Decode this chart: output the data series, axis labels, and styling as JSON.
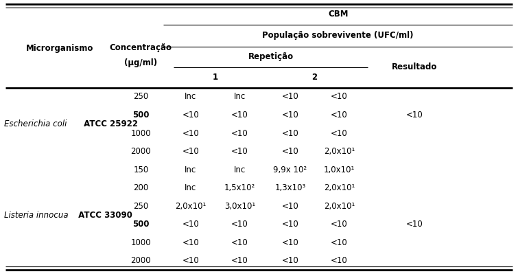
{
  "title": "CBM",
  "header_micro": "Microrganismo",
  "header_conc1": "Concentração",
  "header_conc2": "(μg/ml)",
  "header_pop": "População sobrevivente (UFC/ml)",
  "header_rep": "Repetição",
  "header_1": "1",
  "header_2": "2",
  "header_res": "Resultado",
  "rows": [
    {
      "conc": "250",
      "conc_bold": false,
      "r1a": "Inc",
      "r1b": "Inc",
      "r2a": "<10",
      "r2b": "<10",
      "res": ""
    },
    {
      "conc": "500",
      "conc_bold": true,
      "r1a": "<10",
      "r1b": "<10",
      "r2a": "<10",
      "r2b": "<10",
      "res": "<10"
    },
    {
      "conc": "1000",
      "conc_bold": false,
      "r1a": "<10",
      "r1b": "<10",
      "r2a": "<10",
      "r2b": "<10",
      "res": ""
    },
    {
      "conc": "2000",
      "conc_bold": false,
      "r1a": "<10",
      "r1b": "<10",
      "r2a": "<10",
      "r2b": "2,0x10¹",
      "res": ""
    },
    {
      "conc": "150",
      "conc_bold": false,
      "r1a": "Inc",
      "r1b": "Inc",
      "r2a": "9,9x 10²",
      "r2b": "1,0x10¹",
      "res": ""
    },
    {
      "conc": "200",
      "conc_bold": false,
      "r1a": "Inc",
      "r1b": "1,5x10²",
      "r2a": "1,3x10³",
      "r2b": "2,0x10¹",
      "res": ""
    },
    {
      "conc": "250",
      "conc_bold": false,
      "r1a": "2,0x10¹",
      "r1b": "3,0x10¹",
      "r2a": "<10",
      "r2b": "2,0x10¹",
      "res": ""
    },
    {
      "conc": "500",
      "conc_bold": true,
      "r1a": "<10",
      "r1b": "<10",
      "r2a": "<10",
      "r2b": "<10",
      "res": "<10"
    },
    {
      "conc": "1000",
      "conc_bold": false,
      "r1a": "<10",
      "r1b": "<10",
      "r2a": "<10",
      "r2b": "<10",
      "res": ""
    },
    {
      "conc": "2000",
      "conc_bold": false,
      "r1a": "<10",
      "r1b": "<10",
      "r2a": "<10",
      "r2b": "<10",
      "res": ""
    }
  ],
  "org1_italic": "Escherichia coli",
  "org1_bold": " ATCC 25922",
  "org1_rows": [
    0,
    3
  ],
  "org2_italic": "Listeria innocua",
  "org2_bold": " ATCC 33090",
  "org2_rows": [
    4,
    9
  ],
  "bg_color": "#ffffff",
  "text_color": "#000000",
  "line_color": "#000000",
  "fs_header": 8.5,
  "fs_data": 8.5,
  "lw_thick": 2.0,
  "lw_thin": 0.8
}
